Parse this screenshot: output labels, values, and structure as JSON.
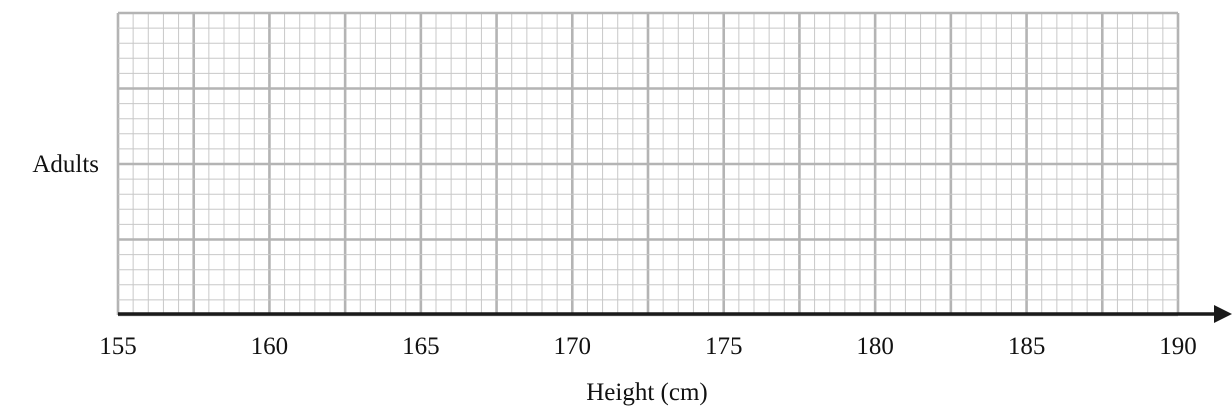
{
  "chart_data": {
    "type": "box",
    "title": "",
    "xlabel": "Height (cm)",
    "ylabel": "",
    "category_label": "Adults",
    "xlim": [
      155,
      190
    ],
    "x_ticks": [
      "155",
      "160",
      "165",
      "170",
      "175",
      "180",
      "185",
      "190"
    ],
    "grid": "on",
    "series": []
  }
}
